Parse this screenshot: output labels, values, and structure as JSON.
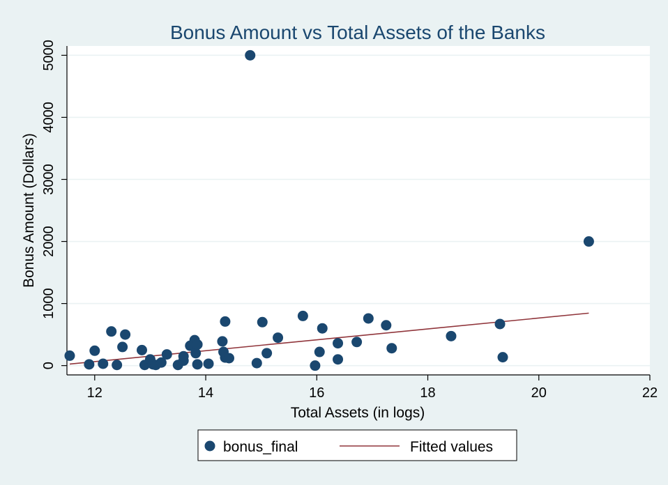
{
  "chart_data": {
    "type": "scatter",
    "title": "Bonus Amount vs Total Assets of the Banks",
    "xlabel": "Total Assets (in logs)",
    "ylabel": "Bonus Amount (Dollars)",
    "xlim": [
      11.5,
      22
    ],
    "ylim": [
      -150,
      5150
    ],
    "xticks": [
      12,
      14,
      16,
      18,
      20,
      22
    ],
    "xtick_labels": [
      "12",
      "14",
      "16",
      "18",
      "20",
      "22"
    ],
    "yticks": [
      0,
      1000,
      2000,
      3000,
      4000,
      5000
    ],
    "ytick_labels": [
      "0",
      "1000",
      "2000",
      "3000",
      "4000",
      "5000"
    ],
    "grid": true,
    "legend_position": "bottom",
    "series": [
      {
        "name": "bonus_final",
        "type": "scatter",
        "color": "#1a476f",
        "points": [
          [
            11.55,
            160
          ],
          [
            11.9,
            20
          ],
          [
            12.0,
            240
          ],
          [
            12.15,
            30
          ],
          [
            12.3,
            550
          ],
          [
            12.4,
            10
          ],
          [
            12.5,
            300
          ],
          [
            12.55,
            500
          ],
          [
            12.85,
            250
          ],
          [
            12.9,
            10
          ],
          [
            13.0,
            100
          ],
          [
            13.05,
            20
          ],
          [
            13.1,
            10
          ],
          [
            13.2,
            50
          ],
          [
            13.3,
            180
          ],
          [
            13.5,
            10
          ],
          [
            13.6,
            80
          ],
          [
            13.6,
            150
          ],
          [
            13.72,
            320
          ],
          [
            13.8,
            410
          ],
          [
            13.82,
            200
          ],
          [
            13.85,
            20
          ],
          [
            13.85,
            340
          ],
          [
            14.05,
            30
          ],
          [
            14.3,
            390
          ],
          [
            14.32,
            220
          ],
          [
            14.35,
            130
          ],
          [
            14.35,
            710
          ],
          [
            14.42,
            120
          ],
          [
            14.8,
            5000
          ],
          [
            14.92,
            40
          ],
          [
            15.02,
            700
          ],
          [
            15.1,
            200
          ],
          [
            15.3,
            450
          ],
          [
            15.75,
            800
          ],
          [
            15.97,
            0
          ],
          [
            16.05,
            220
          ],
          [
            16.1,
            600
          ],
          [
            16.38,
            360
          ],
          [
            16.38,
            100
          ],
          [
            16.72,
            380
          ],
          [
            16.93,
            760
          ],
          [
            17.25,
            650
          ],
          [
            17.35,
            280
          ],
          [
            18.42,
            475
          ],
          [
            19.3,
            670
          ],
          [
            19.35,
            135
          ],
          [
            20.9,
            2000
          ]
        ]
      },
      {
        "name": "Fitted values",
        "type": "line",
        "color": "#90353b",
        "points": [
          [
            11.55,
            25
          ],
          [
            20.9,
            845
          ]
        ]
      }
    ]
  }
}
